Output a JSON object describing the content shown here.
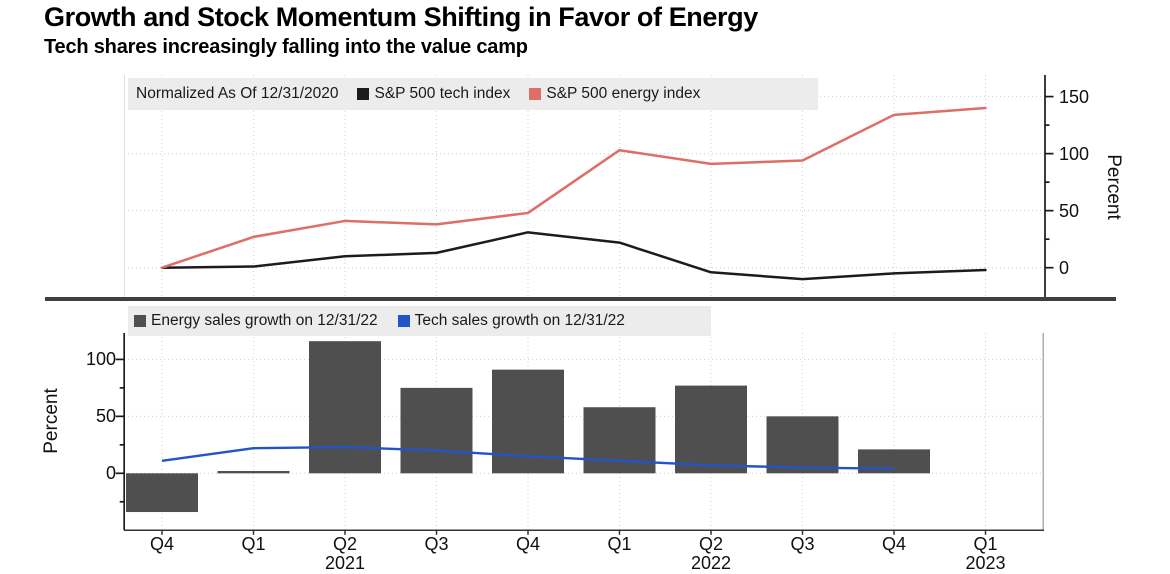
{
  "title": "Growth and Stock Momentum Shifting in Favor of Energy",
  "subtitle": "Tech shares increasingly falling into the value camp",
  "colors": {
    "tech_index_line": "#1c1c1c",
    "energy_index_line": "#de6e67",
    "energy_bars": "#4f4f4f",
    "tech_sales_line": "#2353c8",
    "legend_background": "#ececec",
    "gridline": "#cfcfcf",
    "divider": "#3f3f3f"
  },
  "x_axis": {
    "quarter_labels": [
      "Q4",
      "Q1",
      "Q2",
      "Q3",
      "Q4",
      "Q1",
      "Q2",
      "Q3",
      "Q4",
      "Q1"
    ],
    "year_labels": [
      {
        "text": "2021",
        "at_index": 2
      },
      {
        "text": "2022",
        "at_index": 6
      },
      {
        "text": "2023",
        "at_index": 9
      }
    ]
  },
  "chart_data": [
    {
      "type": "line",
      "note": "Normalized As Of 12/31/2020",
      "categories": [
        "Q4 2020",
        "Q1 2021",
        "Q2 2021",
        "Q3 2021",
        "Q4 2021",
        "Q1 2022",
        "Q2 2022",
        "Q3 2022",
        "Q4 2022",
        "Q1 2023"
      ],
      "series": [
        {
          "name": "S&P 500 tech index",
          "color": "#1c1c1c",
          "values": [
            0,
            1,
            10,
            13,
            31,
            22,
            -4,
            -10,
            -5,
            -2
          ]
        },
        {
          "name": "S&P 500 energy index",
          "color": "#de6e67",
          "values": [
            0,
            27,
            41,
            38,
            48,
            103,
            91,
            94,
            134,
            140
          ]
        }
      ],
      "ylabel": "Percent",
      "ylim": [
        -26,
        170
      ],
      "yticks": [
        0,
        50,
        100,
        150
      ],
      "y_axis_side": "right",
      "legend_position": "top-left",
      "grid": true
    },
    {
      "type": "bar+line",
      "categories": [
        "Q4 2020",
        "Q1 2021",
        "Q2 2021",
        "Q3 2021",
        "Q4 2021",
        "Q1 2022",
        "Q2 2022",
        "Q3 2022",
        "Q4 2022",
        "Q1 2023"
      ],
      "series": [
        {
          "name": "Energy sales growth on 12/31/22",
          "type": "bar",
          "color": "#4f4f4f",
          "values": [
            -34,
            2,
            116,
            75,
            91,
            58,
            77,
            50,
            21,
            null
          ]
        },
        {
          "name": "Tech sales growth on 12/31/22",
          "type": "line",
          "color": "#2353c8",
          "values": [
            11,
            22,
            23,
            20,
            15,
            11,
            7,
            5,
            4,
            null
          ]
        }
      ],
      "ylabel": "Percent",
      "ylim": [
        -50,
        122
      ],
      "yticks": [
        0,
        50,
        100
      ],
      "y_axis_side": "left",
      "legend_position": "top-left",
      "grid": true
    }
  ]
}
